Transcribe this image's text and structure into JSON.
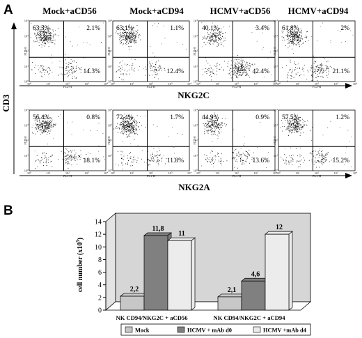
{
  "panel_a": {
    "letter": "A",
    "column_titles": [
      "Mock+aCD56",
      "Mock+aCD94",
      "HCMV+aCD56",
      "HCMV+aCD94"
    ],
    "y_label": "CD3",
    "rows": [
      {
        "x_label": "NKG2C",
        "plots": [
          {
            "ul": "63.3%",
            "ur": "2.1%",
            "lr": "14.3%",
            "yaxis": "FL3-H",
            "xaxis": "FL2-H"
          },
          {
            "ul": "63.1%",
            "ur": "1.1%",
            "lr": "12.4%",
            "yaxis": "FL3-H",
            "xaxis": "FL2-H"
          },
          {
            "ul": "40.1%",
            "ur": "3.4%",
            "lr": "42.4%",
            "yaxis": "FL3-H",
            "xaxis": "FL2-H"
          },
          {
            "ul": "61.8%",
            "ur": "2%",
            "lr": "21.1%",
            "yaxis": "FL3-H",
            "xaxis": "FL2-H"
          }
        ]
      },
      {
        "x_label": "NKG2A",
        "plots": [
          {
            "ul": "56.4%",
            "ur": "0.8%",
            "lr": "18.1%",
            "yaxis": "FL2-H",
            "xaxis": "FL1-H"
          },
          {
            "ul": "72.4%",
            "ur": "1.7%",
            "lr": "11.8%",
            "yaxis": "FL2-H",
            "xaxis": "FL1-H"
          },
          {
            "ul": "44.9%",
            "ur": "0.9%",
            "lr": "13.6%",
            "yaxis": "FL2-H",
            "xaxis": "FL1-H"
          },
          {
            "ul": "57.5%",
            "ur": "1.2%",
            "lr": "15.2%",
            "yaxis": "FL2-H",
            "xaxis": "FL1-H"
          }
        ]
      }
    ]
  },
  "chart_data": {
    "panel_letter": "B",
    "type": "bar",
    "categories": [
      "NK CD94/NKG2C + aCD56",
      "NK CD94/NKG2C + aCD94"
    ],
    "series": [
      {
        "name": "Mock",
        "values": [
          2.2,
          2.1
        ],
        "labels": [
          "2,2",
          "2,1"
        ]
      },
      {
        "name": "HCMV + mAb d0",
        "values": [
          11.8,
          4.6
        ],
        "labels": [
          "11,8",
          "4,6"
        ]
      },
      {
        "name": "HCMV +mAb d4",
        "values": [
          11,
          12
        ],
        "labels": [
          "11",
          "12"
        ]
      }
    ],
    "ylabel": "cell number (x10",
    "ylabel_sup": "5",
    "ylabel_end": ")",
    "ylim": [
      0,
      14
    ],
    "yticks": [
      "0",
      "2",
      "4",
      "6",
      "8",
      "10",
      "12",
      "14"
    ],
    "grid": false,
    "legend": "bottom",
    "colors": {
      "Mock": "#c7c7c7",
      "HCMV + mAb d0": "#808080",
      "HCMV +mAb d4": "#ececec",
      "backwall": "#d6d6d6"
    }
  }
}
